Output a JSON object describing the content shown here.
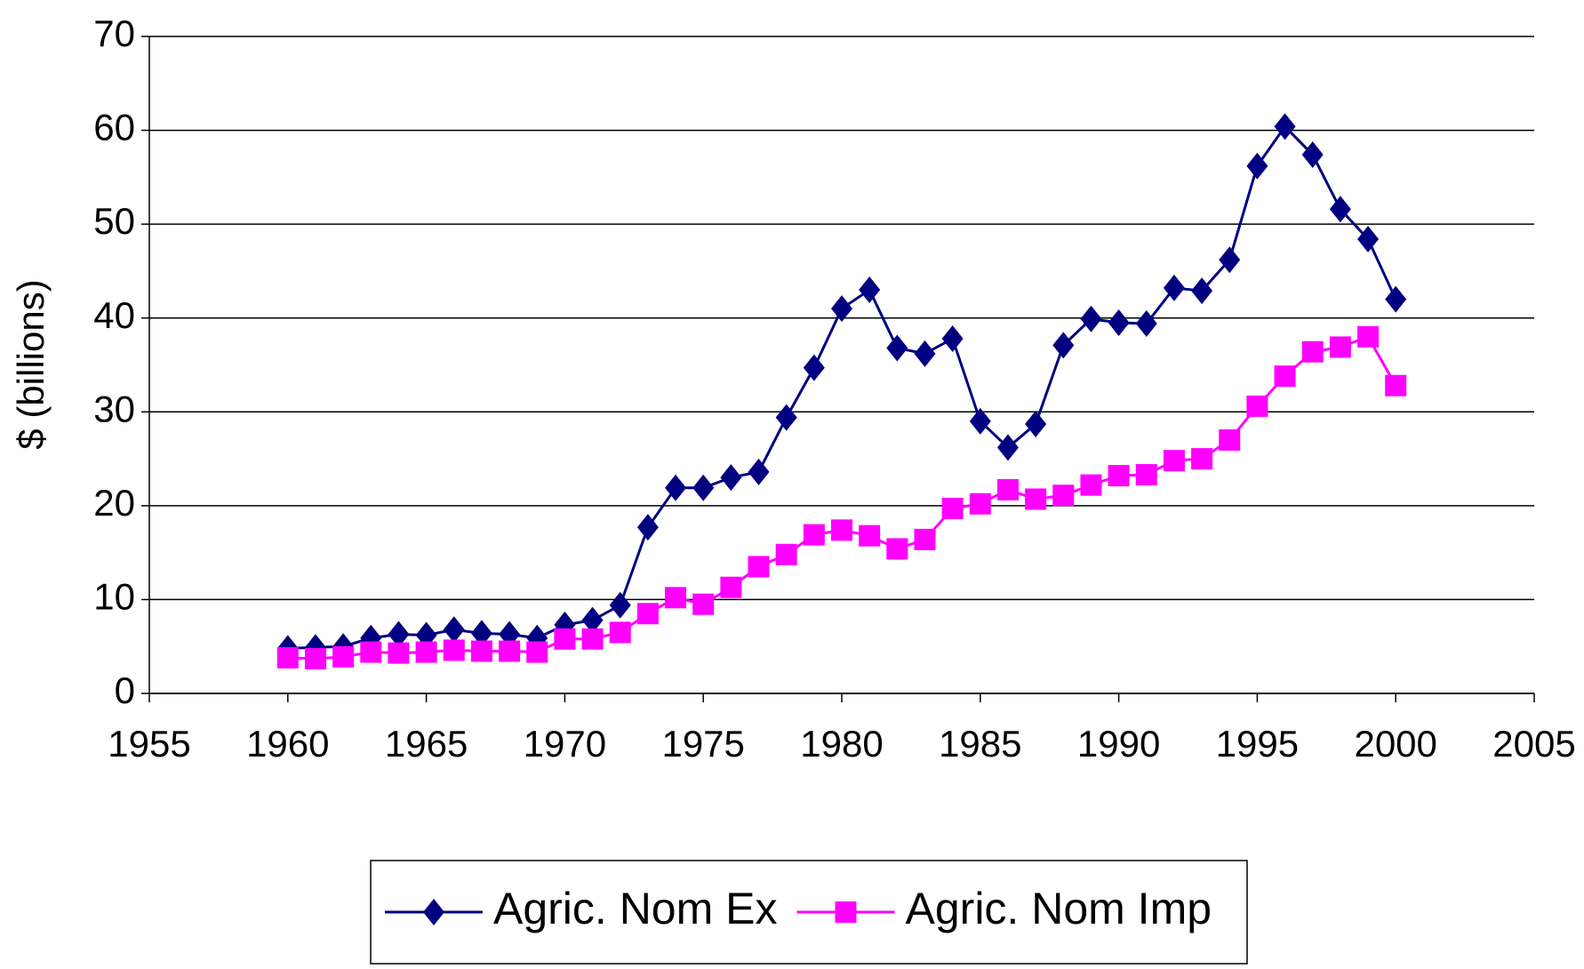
{
  "chart_data": {
    "type": "line",
    "y_label": "$ (billions)",
    "x": [
      1960,
      1961,
      1962,
      1963,
      1964,
      1965,
      1966,
      1967,
      1968,
      1969,
      1970,
      1971,
      1972,
      1973,
      1974,
      1975,
      1976,
      1977,
      1978,
      1979,
      1980,
      1981,
      1982,
      1983,
      1984,
      1985,
      1986,
      1987,
      1988,
      1989,
      1990,
      1991,
      1992,
      1993,
      1994,
      1995,
      1996,
      1997,
      1998,
      1999,
      2000
    ],
    "series": [
      {
        "name": "Agric. Nom Ex",
        "color": "#000080",
        "marker": "diamond",
        "values": [
          4.8,
          4.9,
          5.0,
          5.9,
          6.3,
          6.2,
          6.8,
          6.4,
          6.3,
          5.9,
          7.3,
          7.8,
          9.4,
          17.7,
          21.9,
          21.9,
          23.0,
          23.6,
          29.4,
          34.7,
          41.0,
          43.0,
          36.8,
          36.2,
          37.8,
          29.0,
          26.2,
          28.7,
          37.1,
          39.9,
          39.5,
          39.4,
          43.2,
          42.9,
          46.2,
          56.2,
          60.4,
          57.4,
          51.6,
          48.4,
          42.0
        ]
      },
      {
        "name": "Agric. Nom Imp",
        "color": "#ff00ff",
        "marker": "square",
        "values": [
          3.8,
          3.7,
          3.9,
          4.4,
          4.3,
          4.4,
          4.6,
          4.5,
          4.5,
          4.4,
          5.8,
          5.8,
          6.5,
          8.5,
          10.2,
          9.5,
          11.3,
          13.5,
          14.8,
          16.9,
          17.4,
          16.8,
          15.4,
          16.4,
          19.7,
          20.2,
          21.7,
          20.7,
          21.1,
          22.2,
          23.2,
          23.3,
          24.8,
          25.0,
          27.0,
          30.6,
          33.8,
          36.4,
          36.9,
          38.0,
          32.8
        ]
      }
    ],
    "xlim": [
      1955,
      2005
    ],
    "xticks": [
      1955,
      1960,
      1965,
      1970,
      1975,
      1980,
      1985,
      1990,
      1995,
      2000,
      2005
    ],
    "ylim": [
      0,
      70
    ],
    "yticks": [
      0,
      10,
      20,
      30,
      40,
      50,
      60,
      70
    ],
    "grid": true,
    "legend": "bottom"
  }
}
